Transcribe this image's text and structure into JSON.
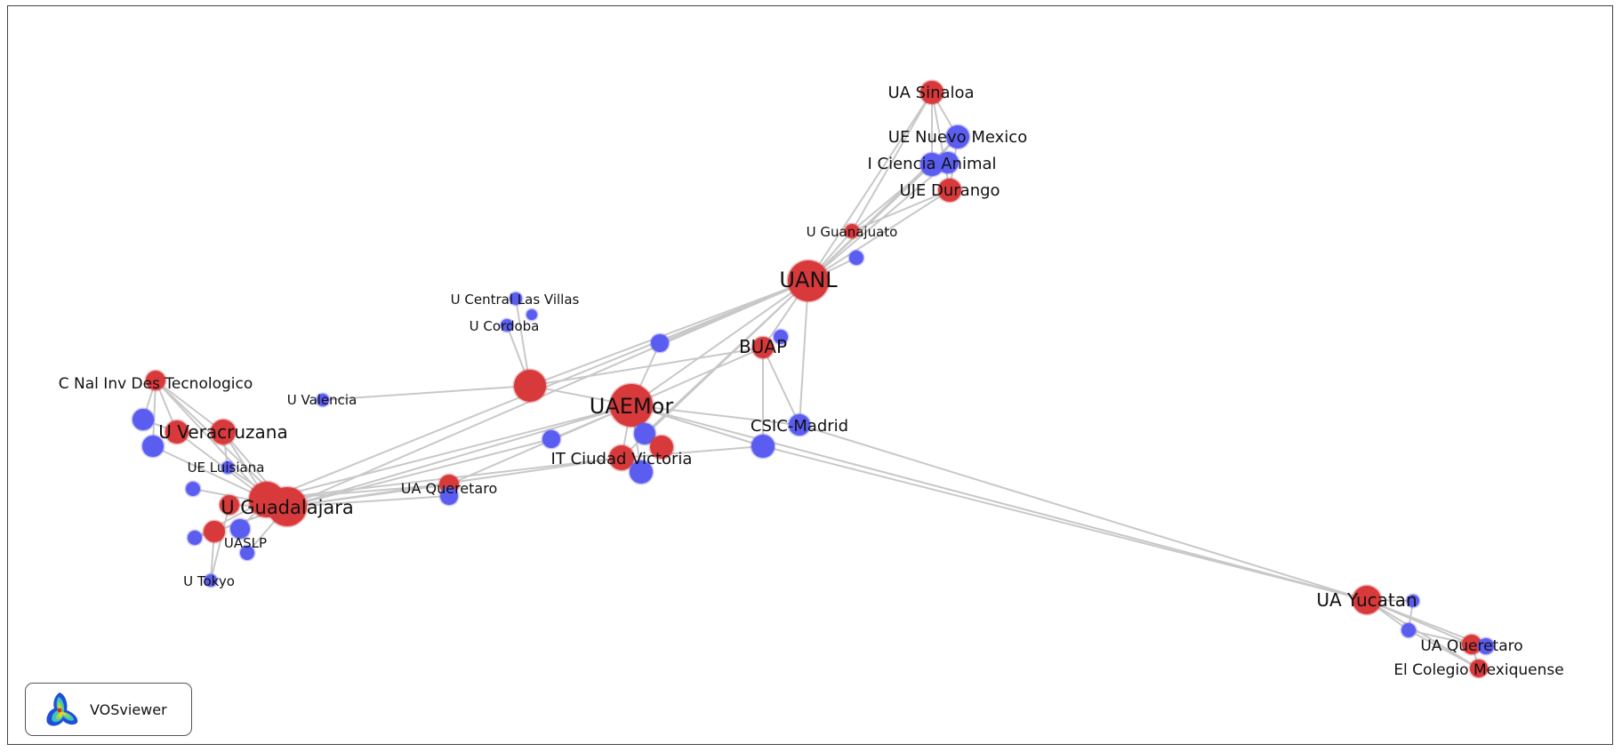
{
  "app": {
    "brand": "VOSviewer",
    "logo_icon": "vosviewer-logo-icon"
  },
  "colors": {
    "cluster_red": "#d8393b",
    "cluster_blue": "#5a5df0",
    "edge": "#c8c8c8"
  },
  "network": {
    "nodes": [
      {
        "id": "ua_sinaloa",
        "label": "UA Sinaloa",
        "cluster": "red"
      },
      {
        "id": "ue_nuevo_mexico",
        "label": "UE Nuevo Mexico",
        "cluster": "blue"
      },
      {
        "id": "i_ciencia_animal",
        "label": "I Ciencia Animal",
        "cluster": "blue"
      },
      {
        "id": "uje_durango",
        "label": "UJE Durango",
        "cluster": "red"
      },
      {
        "id": "u_guanajuato",
        "label": "U Guanajuato",
        "cluster": "red"
      },
      {
        "id": "uanl",
        "label": "UANL",
        "cluster": "red"
      },
      {
        "id": "u_central_las_villas",
        "label": "U Central Las Villas",
        "cluster": "blue"
      },
      {
        "id": "u_cordoba",
        "label": "U Cordoba",
        "cluster": "blue"
      },
      {
        "id": "buap",
        "label": "BUAP",
        "cluster": "red"
      },
      {
        "id": "c_nal_inv",
        "label": "C Nal Inv Des Tecnologico",
        "cluster": "red"
      },
      {
        "id": "u_valencia",
        "label": "U Valencia",
        "cluster": "blue"
      },
      {
        "id": "uaemor",
        "label": "UAEMor",
        "cluster": "red"
      },
      {
        "id": "csic_madrid",
        "label": "CSIC-Madrid",
        "cluster": "blue"
      },
      {
        "id": "u_veracruzana",
        "label": "U Veracruzana",
        "cluster": "red"
      },
      {
        "id": "ue_luisiana",
        "label": "UE Luisiana",
        "cluster": "blue"
      },
      {
        "id": "it_ciudad_victoria",
        "label": "IT Ciudad Victoria",
        "cluster": "red"
      },
      {
        "id": "ua_queretaro_center",
        "label": "UA Queretaro",
        "cluster": "red"
      },
      {
        "id": "u_guadalajara",
        "label": "U Guadalajara",
        "cluster": "red"
      },
      {
        "id": "uaslp",
        "label": "UASLP",
        "cluster": "red"
      },
      {
        "id": "u_tokyo",
        "label": "U Tokyo",
        "cluster": "blue"
      },
      {
        "id": "ua_yucatan",
        "label": "UA Yucatan",
        "cluster": "red"
      },
      {
        "id": "ua_queretaro_east",
        "label": "UA Queretaro",
        "cluster": "blue"
      },
      {
        "id": "el_colegio_mexiquense",
        "label": "El Colegio Mexiquense",
        "cluster": "red"
      }
    ]
  }
}
